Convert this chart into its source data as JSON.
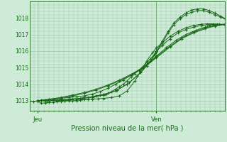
{
  "background_color": "#ceebd8",
  "grid_color": "#9dc9a8",
  "line_color": "#1a6a1a",
  "text_color": "#1a6a1a",
  "ylabel_values": [
    1013,
    1014,
    1015,
    1016,
    1017,
    1018
  ],
  "ylim": [
    1012.4,
    1019.0
  ],
  "xlim": [
    0.0,
    1.0
  ],
  "xlabel": "Pression niveau de la mer( hPa )",
  "xtick_labels": [
    "Jeu",
    "Ven"
  ],
  "xtick_positions": [
    0.04,
    0.65
  ],
  "vline_x": 0.65,
  "series": [
    {
      "x": [
        0.0,
        0.02,
        0.04,
        0.06,
        0.08,
        0.1,
        0.12,
        0.14,
        0.16,
        0.18,
        0.2,
        0.22,
        0.24,
        0.26,
        0.28,
        0.3,
        0.32,
        0.34,
        0.36,
        0.38,
        0.4,
        0.42,
        0.44,
        0.46,
        0.48,
        0.5,
        0.52,
        0.54,
        0.56,
        0.58,
        0.6,
        0.62,
        0.64,
        0.65,
        0.68,
        0.72,
        0.76,
        0.8,
        0.84,
        0.88,
        0.92,
        0.96,
        1.0
      ],
      "y": [
        1013.0,
        1012.95,
        1013.0,
        1013.05,
        1013.0,
        1013.0,
        1013.05,
        1013.0,
        1013.05,
        1013.0,
        1013.05,
        1013.1,
        1013.1,
        1013.15,
        1013.2,
        1013.2,
        1013.25,
        1013.3,
        1013.35,
        1013.4,
        1013.45,
        1013.55,
        1013.7,
        1013.85,
        1014.0,
        1014.2,
        1014.45,
        1014.65,
        1014.85,
        1015.05,
        1015.3,
        1015.55,
        1015.8,
        1016.0,
        1016.35,
        1016.75,
        1017.1,
        1017.3,
        1017.45,
        1017.55,
        1017.6,
        1017.62,
        1017.62
      ]
    },
    {
      "x": [
        0.04,
        0.08,
        0.12,
        0.16,
        0.2,
        0.24,
        0.28,
        0.32,
        0.36,
        0.4,
        0.44,
        0.48,
        0.52,
        0.56,
        0.6,
        0.65,
        0.7,
        0.75,
        0.8,
        0.85,
        0.9,
        0.95,
        1.0
      ],
      "y": [
        1013.0,
        1013.05,
        1013.1,
        1013.15,
        1013.2,
        1013.25,
        1013.3,
        1013.4,
        1013.55,
        1013.75,
        1014.0,
        1014.25,
        1014.55,
        1014.85,
        1015.2,
        1015.7,
        1016.2,
        1016.65,
        1017.0,
        1017.25,
        1017.45,
        1017.58,
        1017.62
      ]
    },
    {
      "x": [
        0.04,
        0.1,
        0.16,
        0.22,
        0.28,
        0.34,
        0.4,
        0.46,
        0.52,
        0.58,
        0.65,
        0.72,
        0.78,
        0.84,
        0.9,
        0.95,
        1.0
      ],
      "y": [
        1013.0,
        1013.1,
        1013.2,
        1013.35,
        1013.5,
        1013.7,
        1013.95,
        1014.25,
        1014.6,
        1015.0,
        1015.65,
        1016.3,
        1016.8,
        1017.15,
        1017.4,
        1017.55,
        1017.62
      ]
    },
    {
      "x": [
        0.04,
        0.1,
        0.16,
        0.22,
        0.28,
        0.34,
        0.4,
        0.46,
        0.52,
        0.58,
        0.65,
        0.72,
        0.78,
        0.84,
        0.9,
        0.95,
        1.0
      ],
      "y": [
        1013.0,
        1013.08,
        1013.18,
        1013.3,
        1013.45,
        1013.65,
        1013.9,
        1014.2,
        1014.55,
        1014.95,
        1015.6,
        1016.25,
        1016.75,
        1017.1,
        1017.35,
        1017.52,
        1017.6
      ]
    },
    {
      "x": [
        0.04,
        0.06,
        0.08,
        0.1,
        0.12,
        0.14,
        0.16,
        0.18,
        0.2,
        0.22,
        0.24,
        0.26,
        0.28,
        0.3,
        0.32,
        0.35,
        0.38,
        0.42,
        0.46,
        0.5,
        0.54,
        0.57,
        0.6,
        0.63,
        0.65,
        0.68,
        0.72,
        0.76,
        0.8,
        0.84,
        0.88,
        0.91,
        0.94,
        0.97,
        1.0
      ],
      "y": [
        1013.0,
        1012.85,
        1012.88,
        1012.9,
        1012.92,
        1012.95,
        1012.95,
        1013.0,
        1013.0,
        1013.0,
        1013.02,
        1013.05,
        1013.08,
        1013.1,
        1013.1,
        1013.12,
        1013.15,
        1013.2,
        1013.3,
        1013.6,
        1014.2,
        1014.8,
        1015.4,
        1015.9,
        1016.2,
        1016.5,
        1016.9,
        1017.2,
        1017.4,
        1017.55,
        1017.62,
        1017.65,
        1017.65,
        1017.62,
        1017.6
      ]
    },
    {
      "x": [
        0.04,
        0.08,
        0.14,
        0.2,
        0.26,
        0.32,
        0.38,
        0.44,
        0.5,
        0.55,
        0.6,
        0.65,
        0.68,
        0.71,
        0.74,
        0.77,
        0.8,
        0.83,
        0.86,
        0.89,
        0.92,
        0.95,
        0.98,
        1.0
      ],
      "y": [
        1013.0,
        1013.0,
        1013.05,
        1013.1,
        1013.15,
        1013.2,
        1013.35,
        1013.6,
        1014.0,
        1014.5,
        1015.1,
        1015.9,
        1016.5,
        1017.1,
        1017.6,
        1017.95,
        1018.2,
        1018.35,
        1018.45,
        1018.45,
        1018.35,
        1018.2,
        1018.05,
        1017.95
      ]
    },
    {
      "x": [
        0.04,
        0.09,
        0.15,
        0.21,
        0.27,
        0.33,
        0.39,
        0.45,
        0.51,
        0.57,
        0.62,
        0.65,
        0.68,
        0.71,
        0.74,
        0.77,
        0.8,
        0.83,
        0.86,
        0.89,
        0.92,
        0.95,
        0.98,
        1.0
      ],
      "y": [
        1013.0,
        1013.0,
        1013.05,
        1013.1,
        1013.15,
        1013.25,
        1013.4,
        1013.65,
        1014.1,
        1014.7,
        1015.4,
        1016.0,
        1016.6,
        1017.2,
        1017.7,
        1018.05,
        1018.3,
        1018.48,
        1018.55,
        1018.55,
        1018.45,
        1018.3,
        1018.1,
        1017.98
      ]
    }
  ]
}
